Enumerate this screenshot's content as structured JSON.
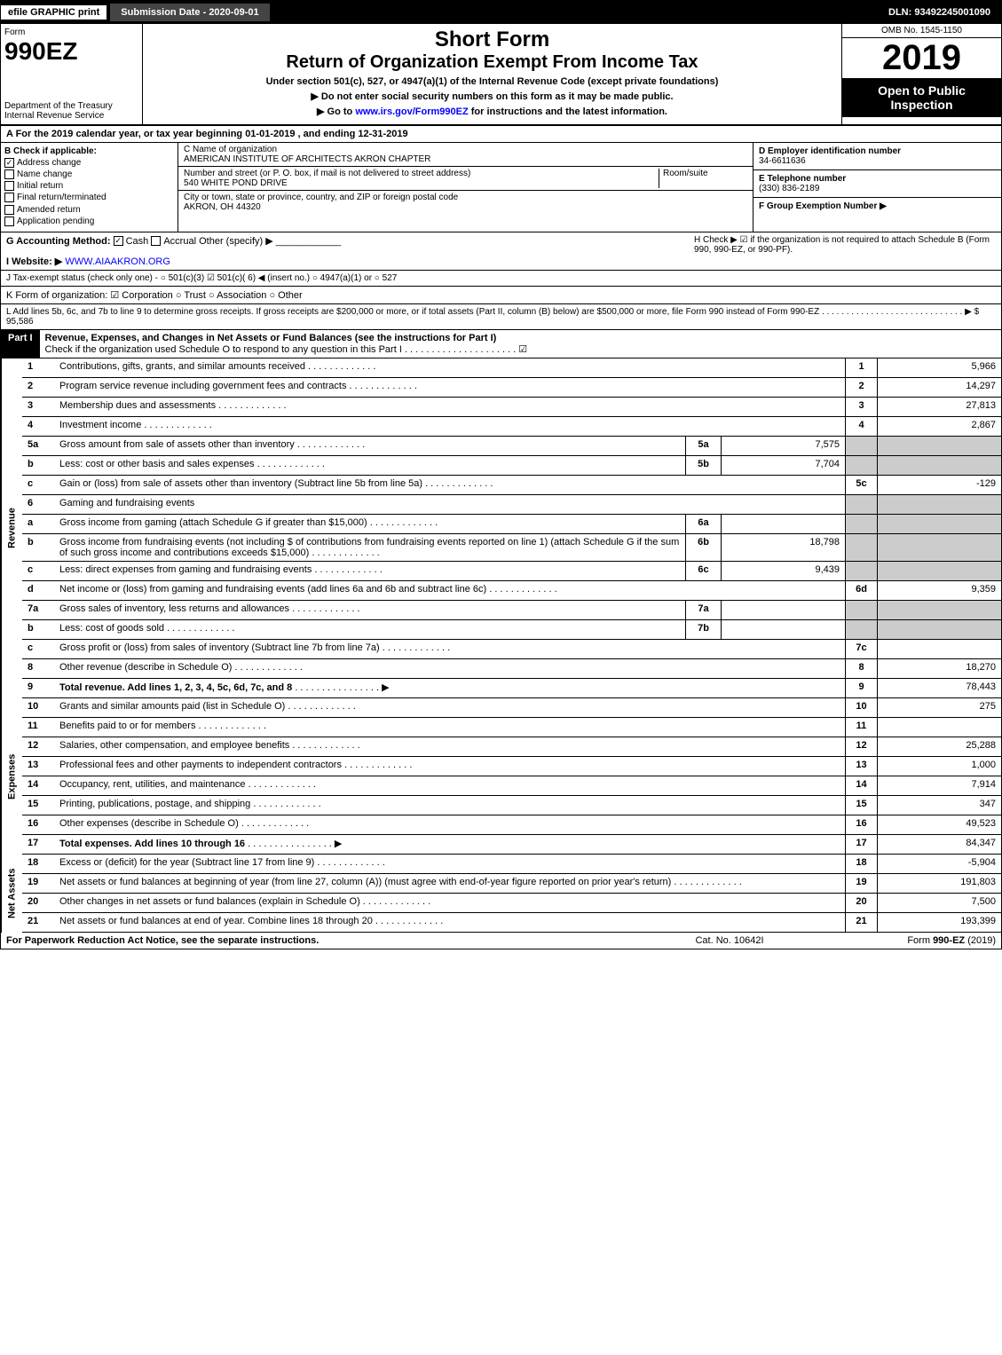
{
  "topbar": {
    "left": "efile GRAPHIC print",
    "mid": "Submission Date - 2020-09-01",
    "right": "DLN: 93492245001090"
  },
  "header": {
    "form_label": "Form",
    "form_number": "990EZ",
    "dept": "Department of the Treasury",
    "irs": "Internal Revenue Service",
    "title_main": "Short Form",
    "title_sub": "Return of Organization Exempt From Income Tax",
    "under": "Under section 501(c), 527, or 4947(a)(1) of the Internal Revenue Code (except private foundations)",
    "warn": "▶ Do not enter social security numbers on this form as it may be made public.",
    "goto": "▶ Go to www.irs.gov/Form990EZ for instructions and the latest information.",
    "omb": "OMB No. 1545-1150",
    "year": "2019",
    "inspection1": "Open to Public",
    "inspection2": "Inspection"
  },
  "row_a": "A For the 2019 calendar year, or tax year beginning 01-01-2019 , and ending 12-31-2019",
  "box_b": {
    "title": "B Check if applicable:",
    "opts": [
      "Address change",
      "Name change",
      "Initial return",
      "Final return/terminated",
      "Amended return",
      "Application pending"
    ],
    "checked": [
      true,
      false,
      false,
      false,
      false,
      false
    ]
  },
  "box_c": {
    "label": "C Name of organization",
    "name": "AMERICAN INSTITUTE OF ARCHITECTS AKRON CHAPTER",
    "addr_label": "Number and street (or P. O. box, if mail is not delivered to street address)",
    "room_label": "Room/suite",
    "addr": "540 WHITE POND DRIVE",
    "city_label": "City or town, state or province, country, and ZIP or foreign postal code",
    "city": "AKRON, OH  44320"
  },
  "box_d": {
    "label": "D Employer identification number",
    "val": "34-6611636"
  },
  "box_e": {
    "label": "E Telephone number",
    "val": "(330) 836-2189"
  },
  "box_f": {
    "label": "F Group Exemption Number ▶",
    "val": ""
  },
  "row_g": {
    "label": "G Accounting Method:",
    "cash": "Cash",
    "accrual": "Accrual",
    "other": "Other (specify) ▶"
  },
  "row_h": "H  Check ▶ ☑ if the organization is not required to attach Schedule B (Form 990, 990-EZ, or 990-PF).",
  "row_i": {
    "label": "I Website: ▶",
    "val": "WWW.AIAAKRON.ORG"
  },
  "row_j": "J Tax-exempt status (check only one) - ○ 501(c)(3) ☑ 501(c)( 6) ◀ (insert no.) ○ 4947(a)(1) or ○ 527",
  "row_k": "K Form of organization:  ☑ Corporation  ○ Trust  ○ Association  ○ Other",
  "row_l": "L Add lines 5b, 6c, and 7b to line 9 to determine gross receipts. If gross receipts are $200,000 or more, or if total assets (Part II, column (B) below) are $500,000 or more, file Form 990 instead of Form 990-EZ  .  .  .  .  .  .  .  .  .  .  .  .  .  .  .  .  .  .  .  .  .  .  .  .  .  .  .  .  . ▶ $ 95,586",
  "part1": {
    "label": "Part I",
    "title": "Revenue, Expenses, and Changes in Net Assets or Fund Balances (see the instructions for Part I)",
    "check": "Check if the organization used Schedule O to respond to any question in this Part I .  .  .  .  .  .  .  .  .  .  .  .  .  .  .  .  .  .  .  .  . ☑"
  },
  "sections": {
    "revenue": "Revenue",
    "expenses": "Expenses",
    "netassets": "Net Assets"
  },
  "lines": [
    {
      "n": "1",
      "desc": "Contributions, gifts, grants, and similar amounts received",
      "rn": "1",
      "val": "5,966"
    },
    {
      "n": "2",
      "desc": "Program service revenue including government fees and contracts",
      "rn": "2",
      "val": "14,297"
    },
    {
      "n": "3",
      "desc": "Membership dues and assessments",
      "rn": "3",
      "val": "27,813"
    },
    {
      "n": "4",
      "desc": "Investment income",
      "rn": "4",
      "val": "2,867"
    },
    {
      "n": "5a",
      "desc": "Gross amount from sale of assets other than inventory",
      "sub": "5a",
      "subval": "7,575",
      "shaded": true
    },
    {
      "n": "b",
      "desc": "Less: cost or other basis and sales expenses",
      "sub": "5b",
      "subval": "7,704",
      "shaded": true
    },
    {
      "n": "c",
      "desc": "Gain or (loss) from sale of assets other than inventory (Subtract line 5b from line 5a)",
      "rn": "5c",
      "val": "-129"
    },
    {
      "n": "6",
      "desc": "Gaming and fundraising events",
      "shaded": true
    },
    {
      "n": "a",
      "desc": "Gross income from gaming (attach Schedule G if greater than $15,000)",
      "sub": "6a",
      "subval": "",
      "shaded": true
    },
    {
      "n": "b",
      "desc": "Gross income from fundraising events (not including $                    of contributions from fundraising events reported on line 1) (attach Schedule G if the sum of such gross income and contributions exceeds $15,000)",
      "sub": "6b",
      "subval": "18,798",
      "shaded": true
    },
    {
      "n": "c",
      "desc": "Less: direct expenses from gaming and fundraising events",
      "sub": "6c",
      "subval": "9,439",
      "shaded": true
    },
    {
      "n": "d",
      "desc": "Net income or (loss) from gaming and fundraising events (add lines 6a and 6b and subtract line 6c)",
      "rn": "6d",
      "val": "9,359"
    },
    {
      "n": "7a",
      "desc": "Gross sales of inventory, less returns and allowances",
      "sub": "7a",
      "subval": "",
      "shaded": true
    },
    {
      "n": "b",
      "desc": "Less: cost of goods sold",
      "sub": "7b",
      "subval": "",
      "shaded": true
    },
    {
      "n": "c",
      "desc": "Gross profit or (loss) from sales of inventory (Subtract line 7b from line 7a)",
      "rn": "7c",
      "val": ""
    },
    {
      "n": "8",
      "desc": "Other revenue (describe in Schedule O)",
      "rn": "8",
      "val": "18,270"
    },
    {
      "n": "9",
      "desc": "Total revenue. Add lines 1, 2, 3, 4, 5c, 6d, 7c, and 8",
      "rn": "9",
      "val": "78,443",
      "arrow": true,
      "bold": true
    }
  ],
  "exp_lines": [
    {
      "n": "10",
      "desc": "Grants and similar amounts paid (list in Schedule O)",
      "rn": "10",
      "val": "275"
    },
    {
      "n": "11",
      "desc": "Benefits paid to or for members",
      "rn": "11",
      "val": ""
    },
    {
      "n": "12",
      "desc": "Salaries, other compensation, and employee benefits",
      "rn": "12",
      "val": "25,288"
    },
    {
      "n": "13",
      "desc": "Professional fees and other payments to independent contractors",
      "rn": "13",
      "val": "1,000"
    },
    {
      "n": "14",
      "desc": "Occupancy, rent, utilities, and maintenance",
      "rn": "14",
      "val": "7,914"
    },
    {
      "n": "15",
      "desc": "Printing, publications, postage, and shipping",
      "rn": "15",
      "val": "347"
    },
    {
      "n": "16",
      "desc": "Other expenses (describe in Schedule O)",
      "rn": "16",
      "val": "49,523"
    },
    {
      "n": "17",
      "desc": "Total expenses. Add lines 10 through 16",
      "rn": "17",
      "val": "84,347",
      "arrow": true,
      "bold": true
    }
  ],
  "na_lines": [
    {
      "n": "18",
      "desc": "Excess or (deficit) for the year (Subtract line 17 from line 9)",
      "rn": "18",
      "val": "-5,904"
    },
    {
      "n": "19",
      "desc": "Net assets or fund balances at beginning of year (from line 27, column (A)) (must agree with end-of-year figure reported on prior year's return)",
      "rn": "19",
      "val": "191,803"
    },
    {
      "n": "20",
      "desc": "Other changes in net assets or fund balances (explain in Schedule O)",
      "rn": "20",
      "val": "7,500"
    },
    {
      "n": "21",
      "desc": "Net assets or fund balances at end of year. Combine lines 18 through 20",
      "rn": "21",
      "val": "193,399",
      "arrow": true
    }
  ],
  "footer": {
    "left": "For Paperwork Reduction Act Notice, see the separate instructions.",
    "mid": "Cat. No. 10642I",
    "right": "Form 990-EZ (2019)"
  },
  "colors": {
    "black": "#000000",
    "white": "#ffffff",
    "shade": "#cccccc",
    "darkgray": "#444444",
    "link": "#0000ff"
  }
}
